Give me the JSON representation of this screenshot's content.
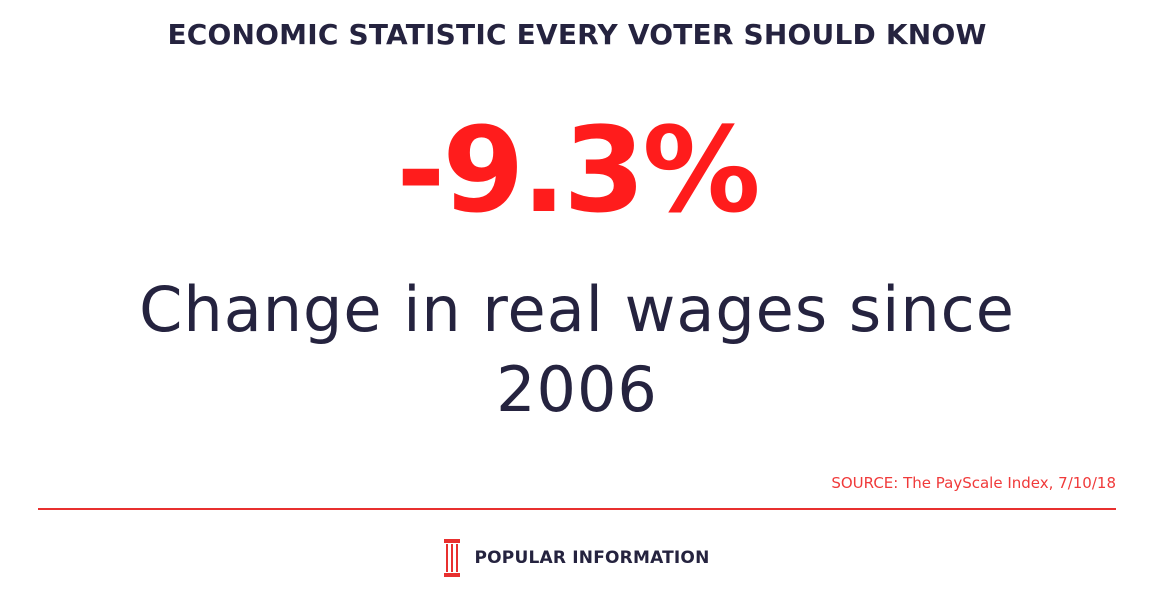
{
  "headline": "ECONOMIC STATISTIC EVERY VOTER SHOULD KNOW",
  "statistic": {
    "value": "-9.3%",
    "caption": "Change in real wages since 2006"
  },
  "source": "SOURCE: The PayScale Index, 7/10/18",
  "brand": {
    "name": "POPULAR INFORMATION",
    "logo_icon": "pillar-logo-icon"
  },
  "colors": {
    "accent": "#ff1c1c",
    "text": "#25233f",
    "rule": "#e8302f"
  }
}
